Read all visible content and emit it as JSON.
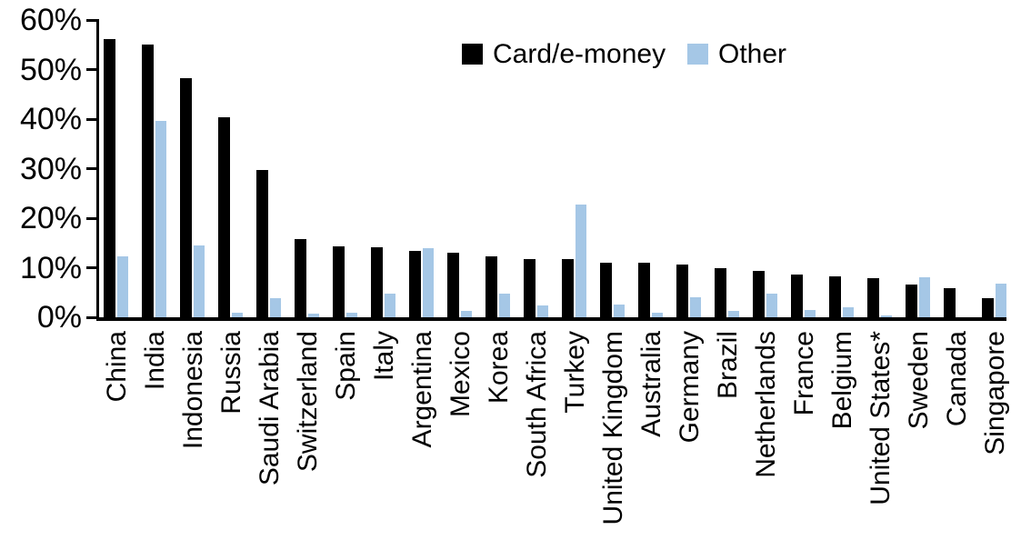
{
  "chart_data": {
    "type": "bar",
    "title": "",
    "xlabel": "",
    "ylabel": "",
    "ylim": [
      0,
      60
    ],
    "grid": false,
    "legend_position": "top-center",
    "y_tick_labels": [
      "60%",
      "50%",
      "40%",
      "30%",
      "20%",
      "10%",
      "0%"
    ],
    "y_tick_values": [
      60,
      50,
      40,
      30,
      20,
      10,
      0
    ],
    "categories": [
      "China",
      "India",
      "Indonesia",
      "Russia",
      "Saudi Arabia",
      "Switzerland",
      "Spain",
      "Italy",
      "Argentina",
      "Mexico",
      "Korea",
      "South Africa",
      "Turkey",
      "United Kingdom",
      "Australia",
      "Germany",
      "Brazil",
      "Netherlands",
      "France",
      "Belgium",
      "United States*",
      "Sweden",
      "Canada",
      "Singapore"
    ],
    "series": [
      {
        "name": "Card/e-money",
        "color": "#000000",
        "values": [
          56.2,
          55.0,
          48.3,
          40.4,
          29.8,
          15.7,
          14.3,
          14.1,
          13.4,
          13.0,
          12.3,
          11.8,
          11.7,
          11.1,
          11.0,
          10.6,
          9.9,
          9.3,
          8.7,
          8.2,
          7.9,
          6.6,
          5.9,
          3.9
        ]
      },
      {
        "name": "Other",
        "color": "#A5C7E6",
        "values": [
          12.3,
          39.6,
          14.5,
          1.0,
          3.8,
          0.7,
          1.0,
          4.7,
          13.9,
          1.3,
          4.7,
          2.4,
          22.7,
          2.5,
          1.0,
          4.1,
          1.2,
          4.8,
          1.5,
          2.0,
          0.4,
          8.1,
          0.0,
          6.7
        ]
      }
    ]
  },
  "legend": {
    "card_label": "Card/e-money",
    "other_label": "Other"
  },
  "colors": {
    "card_series": "#000000",
    "other_series": "#A5C7E6",
    "axis": "#000000",
    "background": "#FFFFFF"
  }
}
